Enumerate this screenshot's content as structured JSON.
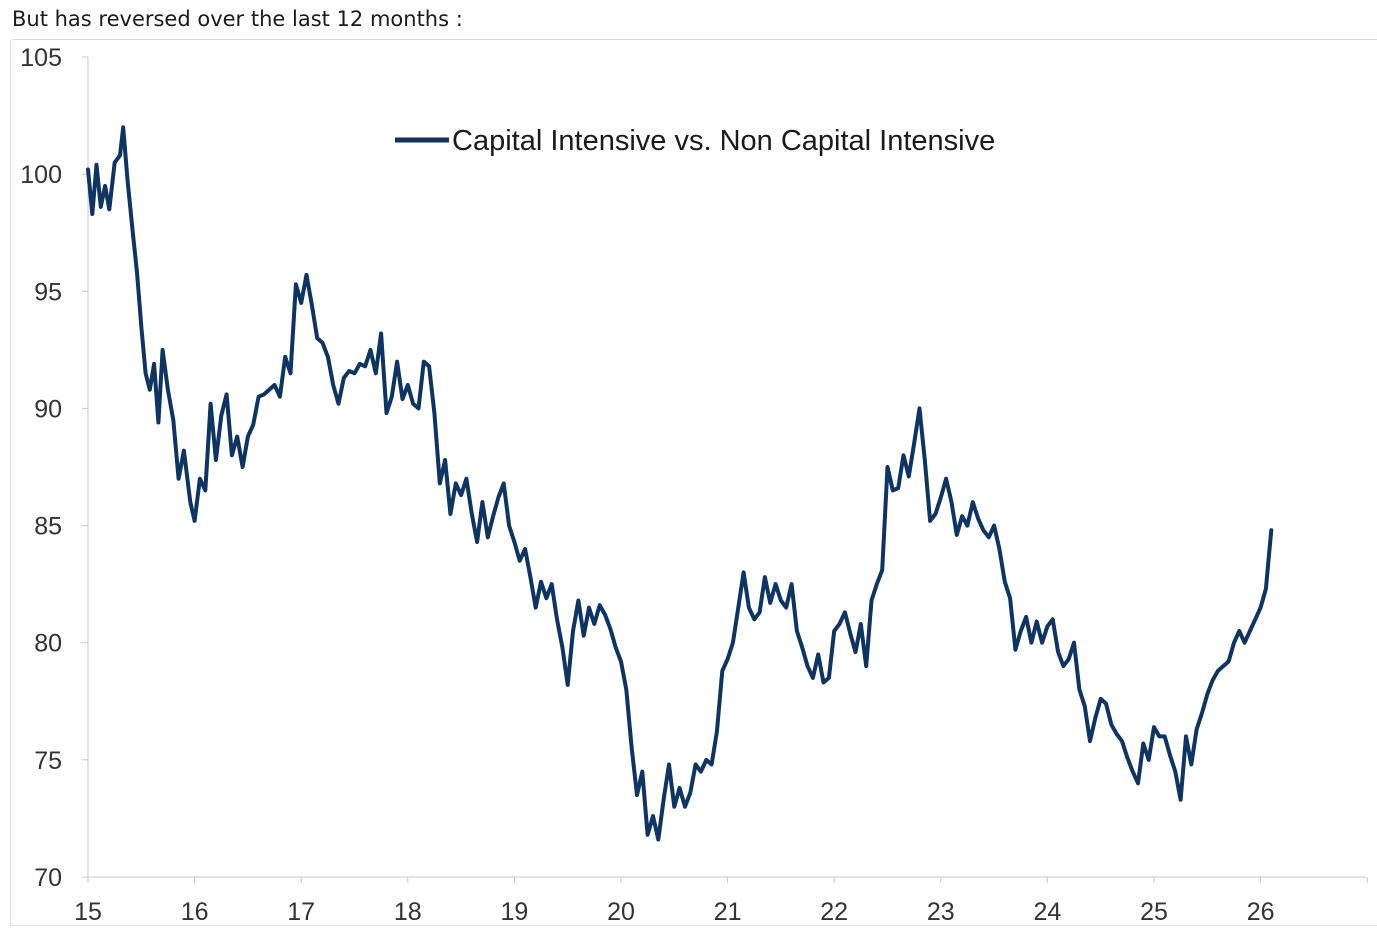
{
  "heading": "But has reversed over the last 12 months :",
  "chart_data": {
    "type": "line",
    "title": "",
    "xlabel": "",
    "ylabel": "",
    "xlim": [
      15,
      27
    ],
    "ylim": [
      70,
      105
    ],
    "x_ticks": [
      "15",
      "16",
      "17",
      "18",
      "19",
      "20",
      "21",
      "22",
      "23",
      "24",
      "25",
      "26"
    ],
    "y_ticks": [
      "70",
      "75",
      "80",
      "85",
      "90",
      "95",
      "100",
      "105"
    ],
    "grid": false,
    "legend_position": "top-center",
    "series": [
      {
        "name": "Capital Intensive vs. Non Capital Intensive",
        "color": "#0f3460",
        "x": [
          15.0,
          15.04,
          15.08,
          15.12,
          15.16,
          15.2,
          15.25,
          15.3,
          15.33,
          15.37,
          15.42,
          15.46,
          15.5,
          15.54,
          15.58,
          15.62,
          15.66,
          15.7,
          15.75,
          15.8,
          15.85,
          15.9,
          15.96,
          16.0,
          16.05,
          16.1,
          16.15,
          16.2,
          16.25,
          16.3,
          16.35,
          16.4,
          16.45,
          16.5,
          16.55,
          16.6,
          16.65,
          16.7,
          16.75,
          16.8,
          16.85,
          16.9,
          16.95,
          17.0,
          17.05,
          17.1,
          17.15,
          17.2,
          17.25,
          17.3,
          17.35,
          17.4,
          17.45,
          17.5,
          17.55,
          17.6,
          17.65,
          17.7,
          17.75,
          17.8,
          17.85,
          17.9,
          17.95,
          18.0,
          18.05,
          18.1,
          18.15,
          18.2,
          18.25,
          18.3,
          18.35,
          18.4,
          18.45,
          18.5,
          18.55,
          18.6,
          18.65,
          18.7,
          18.75,
          18.8,
          18.85,
          18.9,
          18.95,
          19.0,
          19.05,
          19.1,
          19.15,
          19.2,
          19.25,
          19.3,
          19.35,
          19.4,
          19.45,
          19.5,
          19.55,
          19.6,
          19.65,
          19.7,
          19.75,
          19.8,
          19.85,
          19.9,
          19.95,
          20.0,
          20.05,
          20.1,
          20.15,
          20.2,
          20.25,
          20.3,
          20.35,
          20.4,
          20.45,
          20.5,
          20.55,
          20.6,
          20.65,
          20.7,
          20.75,
          20.8,
          20.85,
          20.9,
          20.95,
          21.0,
          21.05,
          21.1,
          21.15,
          21.2,
          21.25,
          21.3,
          21.35,
          21.4,
          21.45,
          21.5,
          21.55,
          21.6,
          21.65,
          21.7,
          21.75,
          21.8,
          21.85,
          21.9,
          21.95,
          22.0,
          22.05,
          22.1,
          22.15,
          22.2,
          22.25,
          22.3,
          22.35,
          22.4,
          22.45,
          22.5,
          22.55,
          22.6,
          22.65,
          22.7,
          22.75,
          22.8,
          22.85,
          22.9,
          22.95,
          23.0,
          23.05,
          23.1,
          23.15,
          23.2,
          23.25,
          23.3,
          23.35,
          23.4,
          23.45,
          23.5,
          23.55,
          23.6,
          23.65,
          23.7,
          23.75,
          23.8,
          23.85,
          23.9,
          23.95,
          24.0,
          24.05,
          24.1,
          24.15,
          24.2,
          24.25,
          24.3,
          24.35,
          24.4,
          24.45,
          24.5,
          24.55,
          24.6,
          24.65,
          24.7,
          24.75,
          24.8,
          24.85,
          24.9,
          24.95,
          25.0,
          25.05,
          25.1,
          25.15,
          25.2,
          25.25,
          25.3,
          25.35,
          25.4,
          25.45,
          25.5,
          25.55,
          25.6,
          25.65,
          25.7,
          25.75,
          25.8,
          25.85,
          25.9,
          25.95,
          26.0,
          26.05,
          26.08,
          26.1
        ],
        "y": [
          100.2,
          98.3,
          100.4,
          98.6,
          99.5,
          98.5,
          100.5,
          100.8,
          102.0,
          99.8,
          97.5,
          95.8,
          93.5,
          91.5,
          90.8,
          91.9,
          89.4,
          92.5,
          90.8,
          89.5,
          87.0,
          88.2,
          86.0,
          85.2,
          87.0,
          86.5,
          90.2,
          87.8,
          89.7,
          90.6,
          88.0,
          88.8,
          87.5,
          88.8,
          89.3,
          90.5,
          90.6,
          90.8,
          91.0,
          90.5,
          92.2,
          91.5,
          95.3,
          94.5,
          95.7,
          94.4,
          93.0,
          92.8,
          92.2,
          91.0,
          90.2,
          91.3,
          91.6,
          91.5,
          91.9,
          91.8,
          92.5,
          91.5,
          93.2,
          89.8,
          90.5,
          92.0,
          90.4,
          91.0,
          90.2,
          90.0,
          92.0,
          91.8,
          89.8,
          86.8,
          87.8,
          85.5,
          86.8,
          86.3,
          87.0,
          85.5,
          84.3,
          86.0,
          84.5,
          85.4,
          86.2,
          86.8,
          85.0,
          84.3,
          83.5,
          84.0,
          82.8,
          81.5,
          82.6,
          81.9,
          82.5,
          81.0,
          79.8,
          78.2,
          80.5,
          81.8,
          80.3,
          81.5,
          80.8,
          81.6,
          81.2,
          80.6,
          79.8,
          79.2,
          78.0,
          75.5,
          73.5,
          74.5,
          71.8,
          72.6,
          71.6,
          73.3,
          74.8,
          73.0,
          73.8,
          73.0,
          73.6,
          74.8,
          74.5,
          75.0,
          74.8,
          76.2,
          78.8,
          79.3,
          80.0,
          81.5,
          83.0,
          81.5,
          81.0,
          81.3,
          82.8,
          81.7,
          82.5,
          81.8,
          81.5,
          82.5,
          80.5,
          79.8,
          79.0,
          78.5,
          79.5,
          78.3,
          78.5,
          80.5,
          80.8,
          81.3,
          80.4,
          79.6,
          80.8,
          79.0,
          81.8,
          82.5,
          83.1,
          87.5,
          86.5,
          86.6,
          88.0,
          87.1,
          88.5,
          90.0,
          87.8,
          85.2,
          85.5,
          86.2,
          87.0,
          86.0,
          84.6,
          85.4,
          85.0,
          86.0,
          85.3,
          84.8,
          84.5,
          85.0,
          84.0,
          82.6,
          81.9,
          79.7,
          80.5,
          81.1,
          80.0,
          80.9,
          80.0,
          80.7,
          81.0,
          79.6,
          79.0,
          79.3,
          80.0,
          78.0,
          77.3,
          75.8,
          76.8,
          77.6,
          77.4,
          76.5,
          76.1,
          75.8,
          75.1,
          74.5,
          74.0,
          75.7,
          75.0,
          76.4,
          76.0,
          76.0,
          75.2,
          74.5,
          73.3,
          76.0,
          74.8,
          76.3,
          77.0,
          77.8,
          78.4,
          78.8,
          79.0,
          79.2,
          80.0,
          80.5,
          80.0,
          80.5,
          81.0,
          81.5,
          82.3,
          83.8,
          84.8
        ]
      }
    ]
  }
}
